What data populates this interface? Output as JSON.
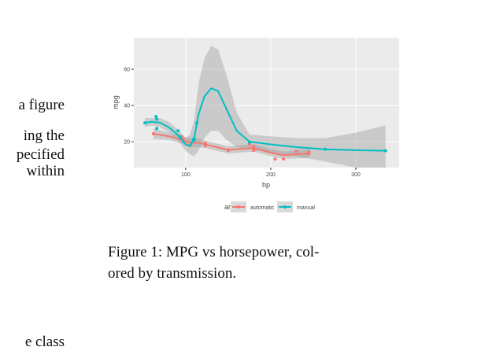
{
  "document": {
    "fragments": [
      "a figure",
      "ing the",
      "pecified",
      "within",
      "e class"
    ],
    "caption": [
      "Figure 1:  MPG vs horsepower, col-",
      "ored by transmission."
    ]
  },
  "chart_data": {
    "type": "scatter",
    "x_label": "hp",
    "y_label": "mpg",
    "legend_title": "am",
    "xlim": [
      39,
      351
    ],
    "ylim": [
      5.7,
      77.4
    ],
    "xticks": [
      100,
      200,
      300
    ],
    "yticks": [
      20,
      40,
      60
    ],
    "grid": true,
    "series": [
      {
        "name": "automatic",
        "color": "#F8766D",
        "x": [
          110,
          175,
          105,
          245,
          62,
          95,
          123,
          123,
          180,
          180,
          180,
          205,
          215,
          230,
          97,
          150,
          150,
          245,
          175
        ],
        "values": [
          21.4,
          18.7,
          18.1,
          14.3,
          24.4,
          22.8,
          19.2,
          17.8,
          16.4,
          17.3,
          15.2,
          10.4,
          10.4,
          14.7,
          21.5,
          15.5,
          15.2,
          13.3,
          19.2
        ]
      },
      {
        "name": "manual",
        "color": "#00BFC4",
        "x": [
          110,
          110,
          93,
          66,
          52,
          65,
          66,
          91,
          113,
          264,
          175,
          335,
          109
        ],
        "values": [
          21,
          21,
          22.8,
          32.4,
          30.4,
          33.9,
          27.3,
          26,
          30.4,
          15.8,
          19.7,
          15,
          21.4
        ]
      }
    ],
    "smooth": [
      {
        "x": [
          62,
          80,
          95,
          105,
          115,
          123,
          150,
          165,
          180,
          200,
          215,
          245
        ],
        "values": [
          24.4,
          23,
          21,
          19.5,
          19.5,
          18.5,
          15.5,
          16,
          16.5,
          14,
          12.5,
          13.5
        ],
        "lower": [
          21.5,
          21,
          19,
          17,
          17,
          16.5,
          13.5,
          14,
          14.5,
          12,
          10.5,
          11
        ],
        "upper": [
          27.3,
          25,
          23,
          22,
          22,
          20.5,
          17.5,
          18,
          18.5,
          16,
          14.5,
          16
        ]
      },
      {
        "x": [
          52,
          60,
          70,
          80,
          90,
          100,
          105,
          110,
          115,
          122,
          130,
          138,
          148,
          160,
          175,
          200,
          230,
          264,
          300,
          335
        ],
        "values": [
          30.4,
          31,
          30.5,
          28,
          24,
          18.5,
          17.5,
          22,
          35,
          45,
          49.5,
          48,
          38,
          26,
          20,
          18.5,
          17,
          15.8,
          15.3,
          15
        ],
        "lower": [
          28,
          29,
          28,
          25,
          21,
          15,
          13,
          12,
          15,
          22,
          26,
          26,
          21,
          17,
          16,
          14,
          12,
          9,
          5.7,
          5.7
        ],
        "upper": [
          33,
          33,
          33,
          31,
          27,
          22,
          24,
          32,
          52,
          66,
          73,
          71,
          57,
          36,
          24,
          23,
          22,
          22,
          25,
          29
        ]
      }
    ]
  }
}
